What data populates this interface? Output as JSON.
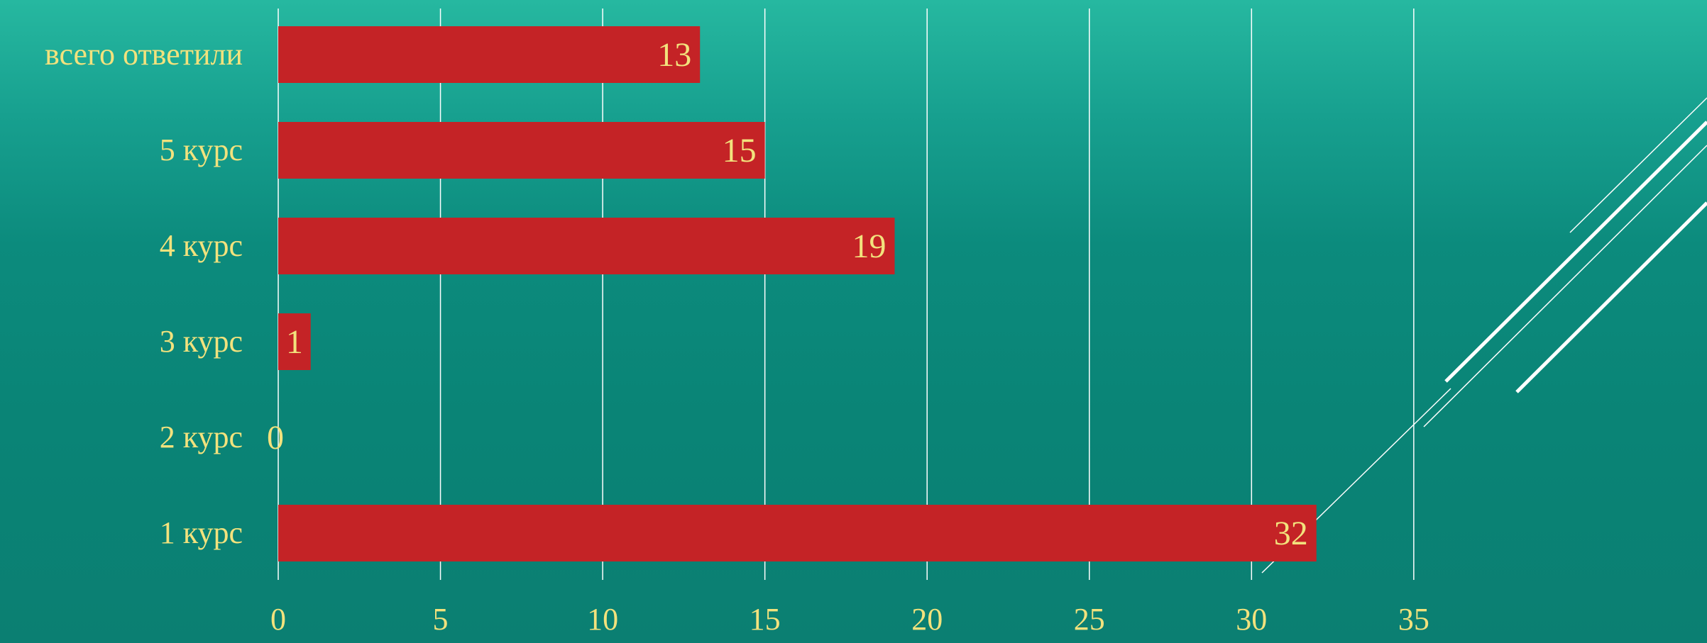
{
  "colors": {
    "bar": "#c42326",
    "text": "#f2e27d",
    "grid": "#ffffff",
    "background_top": "#26b8a0",
    "background_bottom": "#0b7f72"
  },
  "chart_data": {
    "type": "bar",
    "orientation": "horizontal",
    "categories": [
      "всего ответили",
      "5 курс",
      "4 курс",
      "3 курс",
      "2 курс",
      "1 курс"
    ],
    "values": [
      13,
      15,
      19,
      1,
      0,
      32
    ],
    "data_labels": [
      "13",
      "15",
      "19",
      "1",
      "0",
      "32"
    ],
    "xlim": [
      0,
      35
    ],
    "xticks": [
      0,
      5,
      10,
      15,
      20,
      25,
      30,
      35
    ],
    "xtick_labels": [
      "0",
      "5",
      "10",
      "15",
      "20",
      "25",
      "30",
      "35"
    ],
    "grid": true,
    "legend": false
  }
}
